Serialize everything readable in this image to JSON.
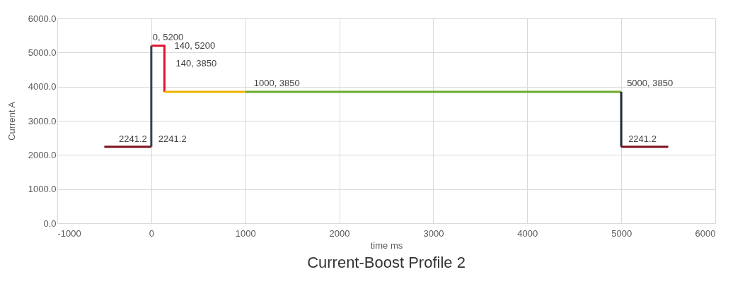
{
  "chart_data": {
    "type": "line",
    "title": "Current-Boost Profile 2",
    "xlabel": "time ms",
    "ylabel": "Current A",
    "xlim": [
      -1000,
      6000
    ],
    "xticks": [
      -1000,
      0,
      1000,
      2000,
      3000,
      4000,
      5000,
      6000
    ],
    "ylim": [
      0,
      6000
    ],
    "yticks": [
      {
        "value": 0,
        "label": "0.0"
      },
      {
        "value": 1000,
        "label": "1000.0"
      },
      {
        "value": 2000,
        "label": "2000.0"
      },
      {
        "value": 3000,
        "label": "3000.0"
      },
      {
        "value": 4000,
        "label": "4000.0"
      },
      {
        "value": 5000,
        "label": "5000.0"
      },
      {
        "value": 6000,
        "label": "6000.0"
      }
    ],
    "grid": true,
    "series": [
      {
        "color": "#7f0f1e",
        "x": [
          -500,
          0
        ],
        "values": [
          2241.2,
          2241.2
        ]
      },
      {
        "color": "#2e4450",
        "x": [
          0,
          0
        ],
        "values": [
          2241.2,
          5200
        ]
      },
      {
        "color": "#e0122e",
        "x": [
          0,
          140,
          140
        ],
        "values": [
          5200,
          5200,
          3850
        ]
      },
      {
        "color": "#f0b400",
        "x": [
          140,
          1000
        ],
        "values": [
          3850,
          3850
        ]
      },
      {
        "color": "#6aaa2c",
        "x": [
          1000,
          5000
        ],
        "values": [
          3850,
          3850
        ]
      },
      {
        "color": "#1f2a30",
        "x": [
          5000,
          5000
        ],
        "values": [
          3850,
          2241.2
        ]
      },
      {
        "color": "#7f0f1e",
        "x": [
          5000,
          5500
        ],
        "values": [
          2241.2,
          2241.2
        ]
      }
    ],
    "annotations": [
      {
        "text": "0, 5200",
        "x": 0,
        "y": 5200
      },
      {
        "text": "140, 5200",
        "x": 140,
        "y": 5200
      },
      {
        "text": "140, 3850",
        "x": 140,
        "y": 3850
      },
      {
        "text": "1000, 3850",
        "x": 1000,
        "y": 3850
      },
      {
        "text": "5000, 3850",
        "x": 5000,
        "y": 3850
      },
      {
        "text": "2241.2",
        "x": 0,
        "y": 2241.2
      },
      {
        "text": "2241.2",
        "x": 0,
        "y": 2241.2
      },
      {
        "text": "2241.2",
        "x": 5000,
        "y": 2241.2
      }
    ]
  }
}
